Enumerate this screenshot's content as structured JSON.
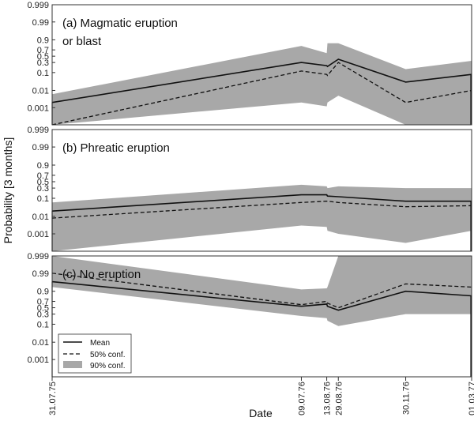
{
  "chart_data": {
    "type": "line",
    "ylabel": "Probability [3 months]",
    "xlabel": "Date",
    "y_scale": "logit",
    "y_ticks": [
      "0.999",
      "0.99",
      "0.9",
      "0.7",
      "0.5",
      "0.3",
      "0.1",
      "0.01",
      "0.001"
    ],
    "x_tick_labels": [
      "31.07.75",
      "09.07.76",
      "13.08.76",
      "29.08.76",
      "30.11.76",
      "01.03.77"
    ],
    "x_dates": [
      "1975-07-31",
      "1976-07-09",
      "1976-08-13",
      "1976-08-29",
      "1976-11-30",
      "1977-03-01"
    ],
    "legend": {
      "position": "bottom-left of panel (c)",
      "entries": [
        "Mean",
        "50% conf.",
        "90% conf."
      ]
    },
    "panels": [
      {
        "label": "(a) Magmatic eruption",
        "label_line2": "or blast",
        "x": [
          "1975-07-31",
          "1976-07-09",
          "1976-08-13",
          "1976-08-14",
          "1976-08-29",
          "1976-11-30",
          "1977-03-01"
        ],
        "series": [
          {
            "name": "Mean",
            "values": [
              0.002,
              0.3,
              0.22,
              0.2,
              0.4,
              0.03,
              0.08
            ]
          },
          {
            "name": "50% conf.",
            "values": [
              0.0001,
              0.12,
              0.08,
              0.07,
              0.3,
              0.002,
              0.01
            ]
          },
          {
            "name": "90% conf.",
            "lower": [
              0.0001,
              0.002,
              0.0012,
              0.002,
              0.005,
              0.0001,
              0.0001
            ],
            "upper": [
              0.006,
              0.8,
              0.6,
              0.85,
              0.85,
              0.15,
              0.35
            ]
          }
        ]
      },
      {
        "label": "(b) Phreatic eruption",
        "x": [
          "1975-07-31",
          "1976-07-09",
          "1976-08-13",
          "1976-08-14",
          "1976-08-29",
          "1976-11-30",
          "1977-03-01"
        ],
        "series": [
          {
            "name": "Mean",
            "values": [
              0.02,
              0.15,
              0.15,
              0.13,
              0.12,
              0.07,
              0.07
            ]
          },
          {
            "name": "50% conf.",
            "values": [
              0.008,
              0.06,
              0.07,
              0.07,
              0.06,
              0.035,
              0.04
            ]
          },
          {
            "name": "90% conf.",
            "lower": [
              0.0001,
              0.003,
              0.0025,
              0.0015,
              0.001,
              0.0003,
              0.0015
            ],
            "upper": [
              0.06,
              0.4,
              0.35,
              0.3,
              0.35,
              0.3,
              0.3
            ]
          }
        ]
      },
      {
        "label": "(c) No eruption",
        "x": [
          "1975-07-31",
          "1976-07-09",
          "1976-08-13",
          "1976-08-14",
          "1976-08-29",
          "1976-11-30",
          "1977-03-01"
        ],
        "series": [
          {
            "name": "Mean",
            "values": [
              0.97,
              0.55,
              0.62,
              0.55,
              0.42,
              0.9,
              0.83
            ]
          },
          {
            "name": "50% conf.",
            "values": [
              0.99,
              0.6,
              0.7,
              0.65,
              0.5,
              0.96,
              0.94
            ]
          },
          {
            "name": "90% conf.",
            "lower": [
              0.94,
              0.25,
              0.2,
              0.15,
              0.08,
              0.3,
              0.3
            ],
            "upper": [
              0.999,
              0.92,
              0.93,
              0.94,
              0.999,
              0.999,
              0.999
            ]
          }
        ]
      }
    ]
  }
}
